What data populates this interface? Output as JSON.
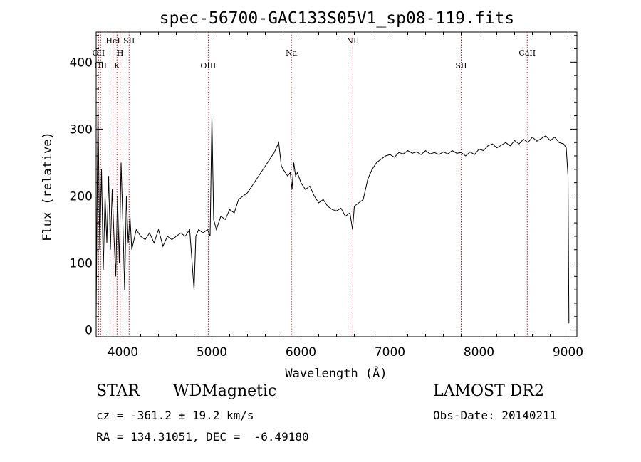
{
  "chart_data": {
    "type": "line",
    "title": "spec-56700-GAC133S05V1_sp08-119.fits",
    "xlabel": "Wavelength (Å)",
    "ylabel": "Flux (relative)",
    "xlim": [
      3700,
      9100
    ],
    "ylim": [
      -10,
      445
    ],
    "x_ticks": [
      4000,
      5000,
      6000,
      7000,
      8000,
      9000
    ],
    "y_ticks": [
      0,
      100,
      200,
      300,
      400
    ],
    "grid": false,
    "series": [
      {
        "color": "#000000",
        "x": [
          3700,
          3720,
          3740,
          3760,
          3780,
          3800,
          3820,
          3840,
          3860,
          3880,
          3900,
          3920,
          3940,
          3960,
          3980,
          4000,
          4020,
          4040,
          4060,
          4080,
          4100,
          4150,
          4200,
          4250,
          4300,
          4350,
          4400,
          4450,
          4500,
          4550,
          4600,
          4650,
          4700,
          4750,
          4800,
          4820,
          4850,
          4900,
          4950,
          4980,
          5000,
          5020,
          5050,
          5100,
          5150,
          5200,
          5250,
          5300,
          5350,
          5400,
          5450,
          5500,
          5550,
          5600,
          5650,
          5700,
          5750,
          5780,
          5800,
          5850,
          5880,
          5900,
          5920,
          5940,
          5960,
          6000,
          6050,
          6100,
          6150,
          6200,
          6250,
          6300,
          6350,
          6400,
          6450,
          6500,
          6550,
          6580,
          6600,
          6650,
          6700,
          6750,
          6800,
          6850,
          6900,
          6950,
          7000,
          7050,
          7100,
          7150,
          7200,
          7250,
          7300,
          7350,
          7400,
          7450,
          7500,
          7550,
          7600,
          7650,
          7700,
          7750,
          7800,
          7850,
          7900,
          7950,
          8000,
          8050,
          8100,
          8150,
          8200,
          8250,
          8300,
          8350,
          8400,
          8450,
          8500,
          8550,
          8600,
          8650,
          8700,
          8750,
          8800,
          8850,
          8900,
          8950,
          8980,
          9000,
          9010
        ],
        "values": [
          20,
          340,
          120,
          240,
          90,
          200,
          130,
          230,
          120,
          210,
          140,
          80,
          200,
          100,
          250,
          160,
          60,
          200,
          130,
          170,
          120,
          150,
          140,
          135,
          145,
          130,
          150,
          125,
          140,
          135,
          140,
          145,
          140,
          150,
          60,
          140,
          150,
          145,
          150,
          140,
          320,
          165,
          150,
          170,
          165,
          180,
          175,
          195,
          200,
          205,
          215,
          225,
          235,
          245,
          255,
          265,
          280,
          245,
          240,
          230,
          235,
          210,
          250,
          230,
          235,
          220,
          210,
          215,
          200,
          190,
          195,
          185,
          180,
          178,
          182,
          170,
          175,
          150,
          185,
          190,
          195,
          225,
          240,
          250,
          255,
          260,
          262,
          258,
          265,
          263,
          268,
          264,
          266,
          262,
          268,
          263,
          265,
          262,
          266,
          263,
          268,
          264,
          265,
          260,
          266,
          262,
          270,
          268,
          275,
          278,
          272,
          276,
          280,
          275,
          283,
          278,
          285,
          280,
          288,
          282,
          286,
          290,
          283,
          288,
          280,
          278,
          272,
          230,
          10
        ]
      }
    ],
    "lines": [
      {
        "x": 3727,
        "label": "OII",
        "row": 1
      },
      {
        "x": 3750,
        "label": "OII",
        "row": 2
      },
      {
        "x": 3889,
        "label": "HeI",
        "row": 0
      },
      {
        "x": 3934,
        "label": "K",
        "row": 2
      },
      {
        "x": 3969,
        "label": "H",
        "row": 1
      },
      {
        "x": 4070,
        "label": "SII",
        "row": 0
      },
      {
        "x": 4959,
        "label": "OIII",
        "row": 2
      },
      {
        "x": 5893,
        "label": "Na",
        "row": 1
      },
      {
        "x": 6584,
        "label": "NII",
        "row": 0
      },
      {
        "x": 7800,
        "label": "SII",
        "row": 2
      },
      {
        "x": 8542,
        "label": "CaII",
        "row": 1
      }
    ]
  },
  "info": {
    "object_type": "STAR",
    "subclass": "WDMagnetic",
    "survey": "LAMOST DR2",
    "cz": "cz = -361.2 ± 19.2 km/s",
    "obs_date": "Obs-Date: 20140211",
    "coords": "RA = 134.31051, DEC =  -6.49180"
  }
}
